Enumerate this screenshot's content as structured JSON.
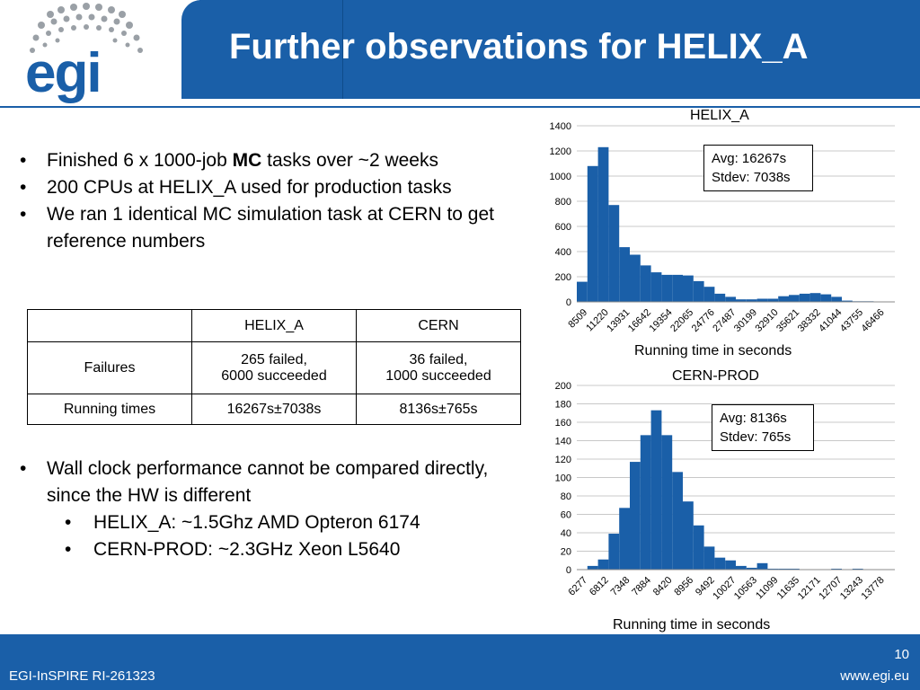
{
  "header": {
    "title": "Further observations for HELIX_A",
    "logo_text": "egi"
  },
  "bullets_top": [
    {
      "pre": "Finished 6 x 1000-job ",
      "bold": "MC",
      "post": " tasks over ~2 weeks"
    },
    {
      "pre": "200 CPUs at HELIX_A used for production tasks",
      "bold": "",
      "post": ""
    },
    {
      "pre": "We ran 1 identical MC simulation task at CERN to get reference numbers",
      "bold": "",
      "post": ""
    }
  ],
  "table": {
    "headers": [
      "",
      "HELIX_A",
      "CERN"
    ],
    "rows": [
      {
        "label": "Failures",
        "helix": [
          "265 failed,",
          "6000 succeeded"
        ],
        "cern": [
          "36 failed,",
          "1000 succeeded"
        ]
      },
      {
        "label": "Running times",
        "helix": [
          "16267s±7038s"
        ],
        "cern": [
          "8136s±765s"
        ]
      }
    ]
  },
  "bullets_bottom": {
    "main": "Wall clock performance cannot be compared directly, since the HW is different",
    "sub": [
      "HELIX_A: ~1.5Ghz AMD Opteron 6174",
      "CERN-PROD: ~2.3GHz Xeon L5640"
    ]
  },
  "footer": {
    "left": "EGI-InSPIRE RI-261323",
    "right": "www.egi.eu",
    "page": "10"
  },
  "colors": {
    "brand": "#1a5fa8",
    "bar": "#1a5fa8"
  },
  "chart_data": [
    {
      "type": "bar",
      "title": "HELIX_A",
      "xlabel": "Running time in seconds",
      "ylim": [
        0,
        1400
      ],
      "yticks": [
        0,
        200,
        400,
        600,
        800,
        1000,
        1200,
        1400
      ],
      "tick_labels": [
        "8509",
        "11220",
        "13931",
        "16642",
        "19354",
        "22065",
        "24776",
        "27487",
        "30199",
        "32910",
        "35621",
        "38332",
        "41044",
        "43755",
        "46466"
      ],
      "values": [
        160,
        1080,
        1230,
        770,
        435,
        375,
        290,
        235,
        215,
        215,
        210,
        165,
        120,
        65,
        40,
        20,
        20,
        25,
        25,
        45,
        55,
        65,
        70,
        60,
        40,
        10,
        5,
        5,
        0,
        0
      ],
      "annotation": [
        "Avg: 16267s",
        "Stdev: 7038s"
      ],
      "grid": true
    },
    {
      "type": "bar",
      "title": "CERN-PROD",
      "xlabel": "Running time in seconds",
      "ylim": [
        0,
        200
      ],
      "yticks": [
        0,
        20,
        40,
        60,
        80,
        100,
        120,
        140,
        160,
        180,
        200
      ],
      "tick_labels": [
        "6277",
        "6812",
        "7348",
        "7884",
        "8420",
        "8956",
        "9492",
        "10027",
        "10563",
        "11099",
        "11635",
        "12171",
        "12707",
        "13243",
        "13778"
      ],
      "values": [
        0,
        4,
        11,
        39,
        67,
        117,
        146,
        173,
        146,
        106,
        74,
        48,
        25,
        13,
        10,
        4,
        2,
        7,
        1,
        1,
        1,
        0,
        0,
        0,
        1,
        0,
        1,
        0,
        0,
        0
      ],
      "annotation": [
        "Avg: 8136s",
        "Stdev: 765s"
      ],
      "grid": true
    }
  ]
}
